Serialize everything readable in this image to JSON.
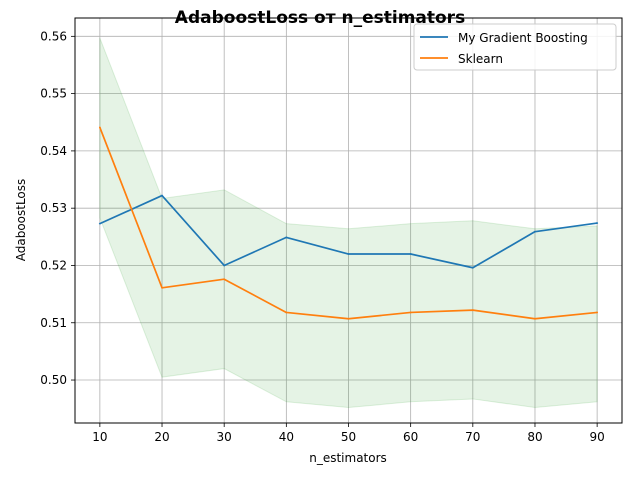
{
  "chart_data": {
    "type": "line",
    "title": "AdaboostLoss от n_estimators",
    "xlabel": "n_estimators",
    "ylabel": "AdaboostLoss",
    "x": [
      10,
      20,
      30,
      40,
      50,
      60,
      70,
      80,
      90
    ],
    "xlim": [
      6,
      94
    ],
    "ylim": [
      0.4925,
      0.5632
    ],
    "xticks": [
      10,
      20,
      30,
      40,
      50,
      60,
      70,
      80,
      90
    ],
    "yticks": [
      0.5,
      0.51,
      0.52,
      0.53,
      0.54,
      0.55,
      0.56
    ],
    "ytick_labels": [
      "0.50",
      "0.51",
      "0.52",
      "0.53",
      "0.54",
      "0.55",
      "0.56"
    ],
    "grid": true,
    "legend_position": "top-right",
    "series": [
      {
        "name": "My Gradient Boosting",
        "color": "#1f77b4",
        "values": [
          0.5273,
          0.5322,
          0.52,
          0.5249,
          0.522,
          0.522,
          0.5196,
          0.5259,
          0.5274
        ]
      },
      {
        "name": "Sklearn",
        "color": "#ff7f0e",
        "values": [
          0.5441,
          0.5161,
          0.5176,
          0.5118,
          0.5107,
          0.5118,
          0.5122,
          0.5107,
          0.5118
        ]
      }
    ],
    "band": {
      "color": "#2ca02c",
      "upper": [
        0.5597,
        0.5317,
        0.5332,
        0.5273,
        0.5264,
        0.5273,
        0.5278,
        0.5264,
        0.5269
      ],
      "lower": [
        0.5283,
        0.5005,
        0.502,
        0.4962,
        0.4952,
        0.4962,
        0.4967,
        0.4952,
        0.4962
      ]
    }
  }
}
